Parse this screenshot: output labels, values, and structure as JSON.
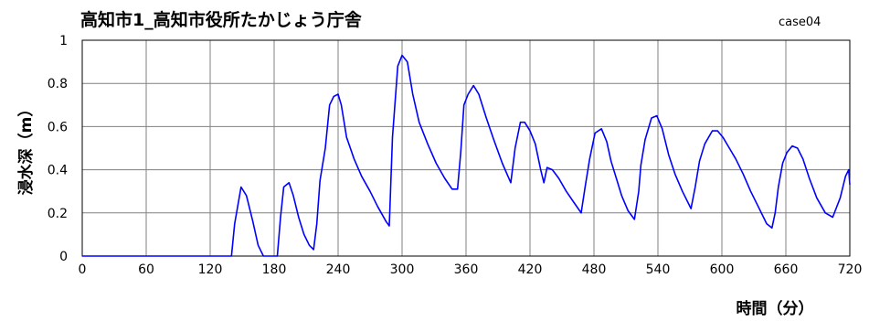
{
  "chart_data": {
    "type": "line",
    "title": "高知市1_高知市役所たかじょう庁舎",
    "case_label": "case04",
    "xlabel": "時間（分）",
    "ylabel": "浸水深（m）",
    "xlim": [
      0,
      720
    ],
    "ylim": [
      0,
      1
    ],
    "xticks": [
      0,
      60,
      120,
      180,
      240,
      300,
      360,
      420,
      480,
      540,
      600,
      660,
      720
    ],
    "yticks": [
      0,
      0.2,
      0.4,
      0.6,
      0.8,
      1
    ],
    "ytick_labels": [
      "0",
      "0.2",
      "0.4",
      "0.6",
      "0.8",
      "1"
    ],
    "grid": true,
    "line_color": "#0000ff",
    "series": [
      {
        "x": [
          0,
          140,
          143,
          149,
          154,
          160,
          165,
          170,
          176,
          180,
          183,
          186,
          189,
          194,
          198,
          203,
          208,
          213,
          217,
          220,
          223,
          228,
          232,
          236,
          240,
          243,
          248,
          255,
          262,
          270,
          277,
          285,
          288,
          291,
          296,
          300,
          305,
          310,
          316,
          324,
          332,
          340,
          347,
          352,
          355,
          358,
          362,
          367,
          372,
          379,
          386,
          394,
          402,
          406,
          411,
          415,
          420,
          425,
          430,
          433,
          436,
          441,
          447,
          454,
          461,
          468,
          472,
          476,
          481,
          487,
          492,
          496,
          501,
          506,
          512,
          518,
          522,
          524,
          528,
          534,
          539,
          544,
          550,
          556,
          563,
          571,
          575,
          579,
          584,
          591,
          596,
          601,
          607,
          613,
          620,
          627,
          634,
          642,
          647,
          650,
          653,
          657,
          661,
          666,
          671,
          676,
          682,
          689,
          697,
          704,
          711,
          716,
          719,
          720
        ],
        "y": [
          0,
          0,
          0.15,
          0.32,
          0.28,
          0.16,
          0.05,
          0,
          0,
          0,
          0,
          0.18,
          0.32,
          0.34,
          0.28,
          0.18,
          0.1,
          0.05,
          0.03,
          0.15,
          0.35,
          0.5,
          0.7,
          0.74,
          0.75,
          0.7,
          0.55,
          0.45,
          0.37,
          0.3,
          0.23,
          0.16,
          0.14,
          0.55,
          0.88,
          0.93,
          0.9,
          0.75,
          0.62,
          0.52,
          0.43,
          0.36,
          0.31,
          0.31,
          0.48,
          0.7,
          0.75,
          0.79,
          0.75,
          0.64,
          0.54,
          0.43,
          0.34,
          0.5,
          0.62,
          0.62,
          0.58,
          0.52,
          0.4,
          0.34,
          0.41,
          0.4,
          0.36,
          0.3,
          0.25,
          0.2,
          0.33,
          0.45,
          0.57,
          0.59,
          0.53,
          0.44,
          0.36,
          0.28,
          0.21,
          0.17,
          0.3,
          0.42,
          0.54,
          0.64,
          0.65,
          0.59,
          0.47,
          0.38,
          0.3,
          0.22,
          0.32,
          0.44,
          0.52,
          0.58,
          0.58,
          0.55,
          0.5,
          0.45,
          0.38,
          0.3,
          0.23,
          0.15,
          0.13,
          0.2,
          0.32,
          0.43,
          0.48,
          0.51,
          0.5,
          0.45,
          0.36,
          0.27,
          0.2,
          0.18,
          0.27,
          0.37,
          0.4,
          0.33
        ]
      }
    ]
  }
}
